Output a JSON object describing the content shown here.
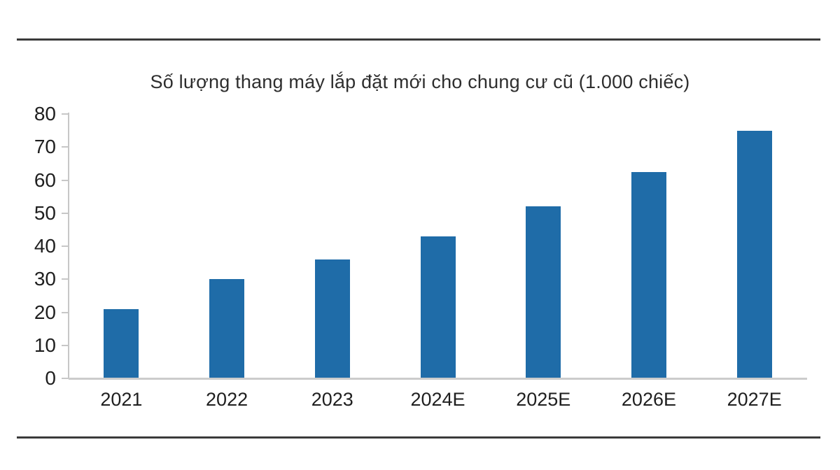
{
  "chart_data": {
    "type": "bar",
    "title": "Số lượng thang máy lắp đặt mới cho chung cư cũ (1.000 chiếc)",
    "categories": [
      "2021",
      "2022",
      "2023",
      "2024E",
      "2025E",
      "2026E",
      "2027E"
    ],
    "values": [
      21,
      30,
      36,
      43,
      52,
      62.5,
      75
    ],
    "xlabel": "",
    "ylabel": "",
    "ylim": [
      0,
      80
    ],
    "y_ticks": [
      0,
      10,
      20,
      30,
      40,
      50,
      60,
      70,
      80
    ],
    "grid": false,
    "legend_position": "none",
    "bar_color": "#1f6ca8"
  },
  "frame": {
    "rule_color": "#3b3b3b"
  }
}
